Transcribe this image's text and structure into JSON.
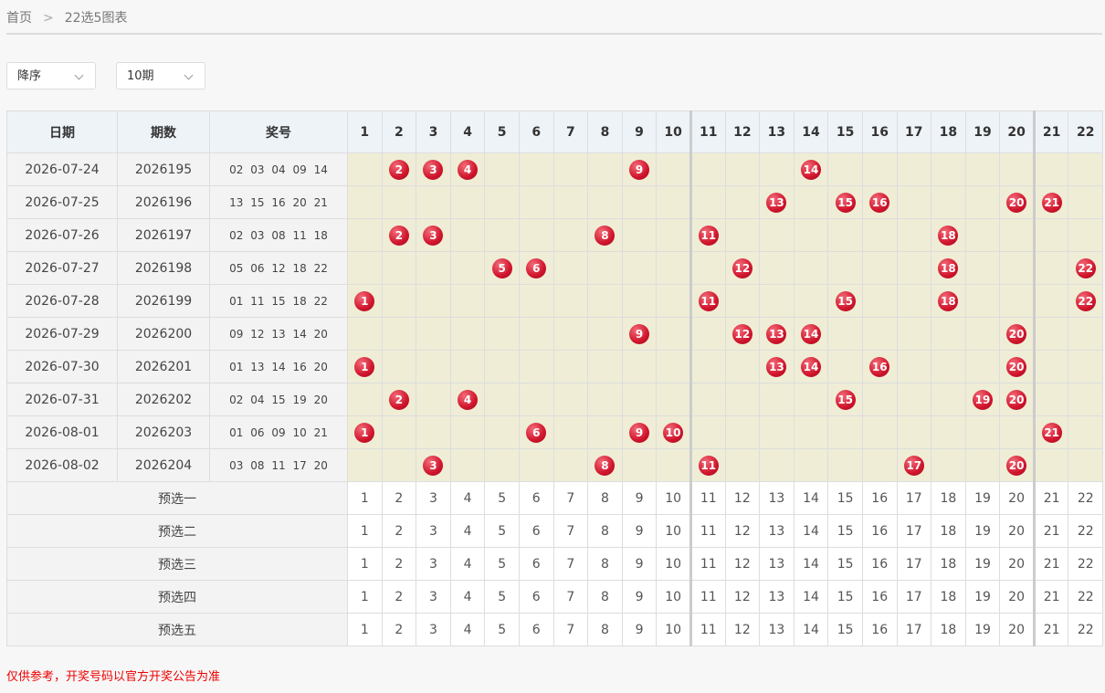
{
  "breadcrumb": [
    "首页",
    "22选5图表"
  ],
  "filters": {
    "order": "降序",
    "periods": "10期"
  },
  "table": {
    "headers": [
      "日期",
      "期数",
      "奖号"
    ],
    "numbers": [
      1,
      2,
      3,
      4,
      5,
      6,
      7,
      8,
      9,
      10,
      11,
      12,
      13,
      14,
      15,
      16,
      17,
      18,
      19,
      20,
      21,
      22
    ],
    "draws": [
      {
        "date": "2026-07-24",
        "issue": "2026195",
        "balls": [
          "02",
          "03",
          "04",
          "09",
          "14"
        ]
      },
      {
        "date": "2026-07-25",
        "issue": "2026196",
        "balls": [
          "13",
          "15",
          "16",
          "20",
          "21"
        ]
      },
      {
        "date": "2026-07-26",
        "issue": "2026197",
        "balls": [
          "02",
          "03",
          "08",
          "11",
          "18"
        ]
      },
      {
        "date": "2026-07-27",
        "issue": "2026198",
        "balls": [
          "05",
          "06",
          "12",
          "18",
          "22"
        ]
      },
      {
        "date": "2026-07-28",
        "issue": "2026199",
        "balls": [
          "01",
          "11",
          "15",
          "18",
          "22"
        ]
      },
      {
        "date": "2026-07-29",
        "issue": "2026200",
        "balls": [
          "09",
          "12",
          "13",
          "14",
          "20"
        ]
      },
      {
        "date": "2026-07-30",
        "issue": "2026201",
        "balls": [
          "01",
          "13",
          "14",
          "16",
          "20"
        ]
      },
      {
        "date": "2026-07-31",
        "issue": "2026202",
        "balls": [
          "02",
          "04",
          "15",
          "19",
          "20"
        ]
      },
      {
        "date": "2026-08-01",
        "issue": "2026203",
        "balls": [
          "01",
          "06",
          "09",
          "10",
          "21"
        ]
      },
      {
        "date": "2026-08-02",
        "issue": "2026204",
        "balls": [
          "03",
          "08",
          "11",
          "17",
          "20"
        ]
      }
    ],
    "preselect_labels": [
      "预选一",
      "预选二",
      "预选三",
      "预选四",
      "预选五"
    ]
  },
  "note": "仅供参考，开奖号码以官方开奖公告为准"
}
